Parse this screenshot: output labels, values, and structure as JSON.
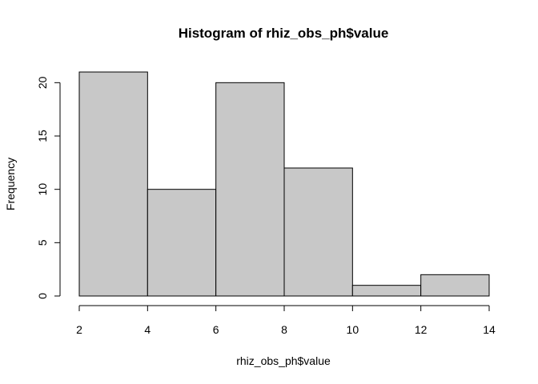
{
  "chart_data": {
    "type": "bar",
    "subtype": "histogram",
    "title": "Histogram of rhiz_obs_ph$value",
    "xlabel": "rhiz_obs_ph$value",
    "ylabel": "Frequency",
    "bins": [
      {
        "start": 2,
        "end": 4,
        "value": 21
      },
      {
        "start": 4,
        "end": 6,
        "value": 10
      },
      {
        "start": 6,
        "end": 8,
        "value": 20
      },
      {
        "start": 8,
        "end": 10,
        "value": 12
      },
      {
        "start": 10,
        "end": 12,
        "value": 1
      },
      {
        "start": 12,
        "end": 14,
        "value": 2
      }
    ],
    "xlim": [
      2,
      14
    ],
    "ylim": [
      0,
      21
    ],
    "xticks": [
      2,
      4,
      6,
      8,
      10,
      12,
      14
    ],
    "yticks": [
      0,
      5,
      10,
      15,
      20
    ],
    "bar_color": "#c8c8c8",
    "edge_color": "#000000",
    "grid": false,
    "legend": "none"
  }
}
